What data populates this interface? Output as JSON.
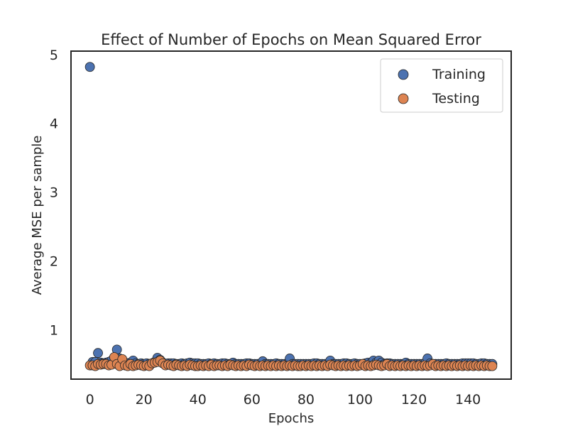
{
  "chart_data": {
    "type": "scatter",
    "title": "Effect of Number of Epochs on Mean Squared Error",
    "xlabel": "Epochs",
    "ylabel": "Average MSE per sample",
    "xlim": [
      -7,
      156
    ],
    "ylim": [
      0.28,
      5.05
    ],
    "xticks": [
      0,
      20,
      40,
      60,
      80,
      100,
      120,
      140
    ],
    "yticks": [
      1,
      2,
      3,
      4,
      5
    ],
    "grid": false,
    "legend_position": "top-right",
    "series": [
      {
        "name": "Training",
        "color": "#4c72b0",
        "x": [
          0,
          1,
          2,
          3,
          4,
          5,
          6,
          7,
          8,
          9,
          10,
          11,
          12,
          13,
          14,
          15,
          16,
          17,
          18,
          19,
          20,
          21,
          22,
          23,
          24,
          25,
          26,
          27,
          28,
          29,
          30,
          31,
          32,
          33,
          34,
          35,
          36,
          37,
          38,
          39,
          40,
          41,
          42,
          43,
          44,
          45,
          46,
          47,
          48,
          49,
          50,
          51,
          52,
          53,
          54,
          55,
          56,
          57,
          58,
          59,
          60,
          61,
          62,
          63,
          64,
          65,
          66,
          67,
          68,
          69,
          70,
          71,
          72,
          73,
          74,
          75,
          76,
          77,
          78,
          79,
          80,
          81,
          82,
          83,
          84,
          85,
          86,
          87,
          88,
          89,
          90,
          91,
          92,
          93,
          94,
          95,
          96,
          97,
          98,
          99,
          100,
          101,
          102,
          103,
          104,
          105,
          106,
          107,
          108,
          109,
          110,
          111,
          112,
          113,
          114,
          115,
          116,
          117,
          118,
          119,
          120,
          121,
          122,
          123,
          124,
          125,
          126,
          127,
          128,
          129,
          130,
          131,
          132,
          133,
          134,
          135,
          136,
          137,
          138,
          139,
          140,
          141,
          142,
          143,
          144,
          145,
          146,
          147,
          148,
          149
        ],
        "y": [
          4.82,
          0.53,
          0.53,
          0.66,
          0.52,
          0.51,
          0.52,
          0.53,
          0.55,
          0.52,
          0.71,
          0.58,
          0.53,
          0.52,
          0.51,
          0.52,
          0.55,
          0.51,
          0.5,
          0.51,
          0.5,
          0.51,
          0.5,
          0.51,
          0.53,
          0.59,
          0.56,
          0.52,
          0.5,
          0.51,
          0.51,
          0.51,
          0.5,
          0.5,
          0.51,
          0.5,
          0.51,
          0.52,
          0.51,
          0.51,
          0.51,
          0.5,
          0.5,
          0.5,
          0.51,
          0.5,
          0.51,
          0.5,
          0.5,
          0.51,
          0.51,
          0.5,
          0.5,
          0.52,
          0.5,
          0.5,
          0.5,
          0.5,
          0.51,
          0.51,
          0.5,
          0.5,
          0.5,
          0.5,
          0.54,
          0.5,
          0.5,
          0.5,
          0.5,
          0.51,
          0.5,
          0.5,
          0.5,
          0.5,
          0.58,
          0.5,
          0.5,
          0.5,
          0.5,
          0.5,
          0.5,
          0.5,
          0.5,
          0.51,
          0.51,
          0.5,
          0.5,
          0.5,
          0.5,
          0.55,
          0.5,
          0.5,
          0.5,
          0.5,
          0.51,
          0.51,
          0.5,
          0.5,
          0.51,
          0.5,
          0.5,
          0.5,
          0.51,
          0.52,
          0.51,
          0.55,
          0.52,
          0.55,
          0.52,
          0.5,
          0.51,
          0.51,
          0.5,
          0.5,
          0.5,
          0.5,
          0.5,
          0.52,
          0.5,
          0.5,
          0.5,
          0.5,
          0.5,
          0.5,
          0.51,
          0.58,
          0.51,
          0.5,
          0.5,
          0.5,
          0.5,
          0.5,
          0.51,
          0.5,
          0.5,
          0.5,
          0.5,
          0.5,
          0.51,
          0.51,
          0.51,
          0.51,
          0.51,
          0.5,
          0.5,
          0.51,
          0.51,
          0.5,
          0.5,
          0.5
        ]
      },
      {
        "name": "Testing",
        "color": "#dd8452",
        "x": [
          0,
          1,
          2,
          3,
          4,
          5,
          6,
          7,
          8,
          9,
          10,
          11,
          12,
          13,
          14,
          15,
          16,
          17,
          18,
          19,
          20,
          21,
          22,
          23,
          24,
          25,
          26,
          27,
          28,
          29,
          30,
          31,
          32,
          33,
          34,
          35,
          36,
          37,
          38,
          39,
          40,
          41,
          42,
          43,
          44,
          45,
          46,
          47,
          48,
          49,
          50,
          51,
          52,
          53,
          54,
          55,
          56,
          57,
          58,
          59,
          60,
          61,
          62,
          63,
          64,
          65,
          66,
          67,
          68,
          69,
          70,
          71,
          72,
          73,
          74,
          75,
          76,
          77,
          78,
          79,
          80,
          81,
          82,
          83,
          84,
          85,
          86,
          87,
          88,
          89,
          90,
          91,
          92,
          93,
          94,
          95,
          96,
          97,
          98,
          99,
          100,
          101,
          102,
          103,
          104,
          105,
          106,
          107,
          108,
          109,
          110,
          111,
          112,
          113,
          114,
          115,
          116,
          117,
          118,
          119,
          120,
          121,
          122,
          123,
          124,
          125,
          126,
          127,
          128,
          129,
          130,
          131,
          132,
          133,
          134,
          135,
          136,
          137,
          138,
          139,
          140,
          141,
          142,
          143,
          144,
          145,
          146,
          147,
          148,
          149
        ],
        "y": [
          0.48,
          0.48,
          0.47,
          0.5,
          0.49,
          0.5,
          0.5,
          0.48,
          0.49,
          0.6,
          0.5,
          0.47,
          0.57,
          0.48,
          0.47,
          0.5,
          0.47,
          0.48,
          0.49,
          0.48,
          0.47,
          0.48,
          0.47,
          0.51,
          0.52,
          0.53,
          0.55,
          0.51,
          0.48,
          0.49,
          0.48,
          0.47,
          0.49,
          0.48,
          0.47,
          0.48,
          0.47,
          0.49,
          0.48,
          0.47,
          0.47,
          0.48,
          0.47,
          0.48,
          0.47,
          0.49,
          0.47,
          0.48,
          0.48,
          0.47,
          0.48,
          0.47,
          0.49,
          0.48,
          0.47,
          0.48,
          0.47,
          0.48,
          0.47,
          0.49,
          0.48,
          0.47,
          0.48,
          0.47,
          0.48,
          0.47,
          0.48,
          0.47,
          0.48,
          0.47,
          0.48,
          0.47,
          0.48,
          0.47,
          0.48,
          0.47,
          0.48,
          0.47,
          0.47,
          0.48,
          0.47,
          0.48,
          0.47,
          0.48,
          0.47,
          0.48,
          0.47,
          0.48,
          0.47,
          0.49,
          0.48,
          0.47,
          0.48,
          0.47,
          0.48,
          0.47,
          0.48,
          0.47,
          0.48,
          0.47,
          0.48,
          0.5,
          0.47,
          0.48,
          0.47,
          0.48,
          0.49,
          0.48,
          0.47,
          0.48,
          0.5,
          0.47,
          0.48,
          0.47,
          0.48,
          0.47,
          0.48,
          0.47,
          0.48,
          0.47,
          0.48,
          0.47,
          0.48,
          0.47,
          0.48,
          0.47,
          0.48,
          0.5,
          0.47,
          0.48,
          0.47,
          0.48,
          0.47,
          0.48,
          0.47,
          0.48,
          0.47,
          0.48,
          0.47,
          0.48,
          0.47,
          0.48,
          0.47,
          0.48,
          0.47,
          0.48,
          0.47,
          0.48,
          0.47,
          0.47
        ]
      }
    ]
  }
}
